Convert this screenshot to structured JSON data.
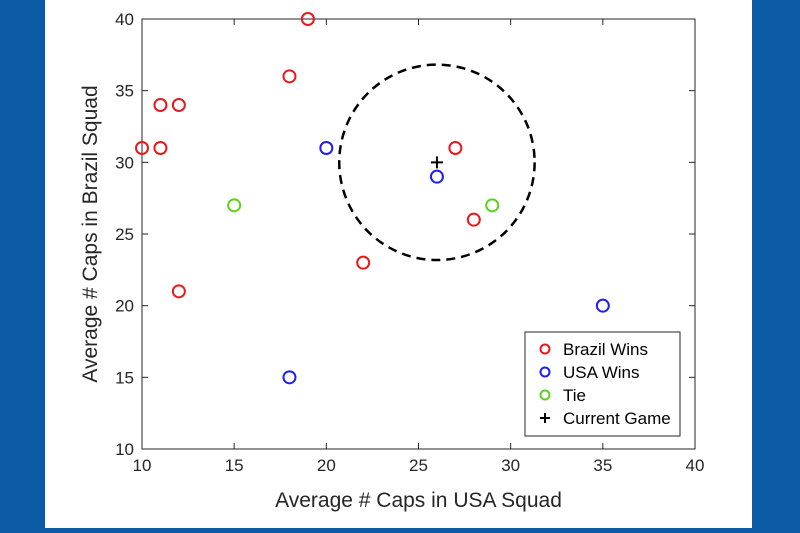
{
  "colors": {
    "background": "#0a5aa6",
    "brazil": "#e8191b",
    "usa": "#1f1ff0",
    "tie": "#5cd11f",
    "current": "#000000",
    "circle": "#000000"
  },
  "chart_data": {
    "type": "scatter",
    "xlabel": "Average # Caps in USA Squad",
    "ylabel": "Average # Caps in Brazil Squad",
    "xlim": [
      10,
      40
    ],
    "ylim": [
      10,
      40
    ],
    "xticks": [
      "10",
      "15",
      "20",
      "25",
      "30",
      "35",
      "40"
    ],
    "yticks": [
      "10",
      "15",
      "20",
      "25",
      "30",
      "35",
      "40"
    ],
    "grid": false,
    "legend_position": "bottom-right",
    "series": [
      {
        "name": "Brazil Wins",
        "marker": "circle",
        "color": "#e8191b",
        "points": [
          {
            "x": 10,
            "y": 31
          },
          {
            "x": 11,
            "y": 31
          },
          {
            "x": 11,
            "y": 34
          },
          {
            "x": 12,
            "y": 34
          },
          {
            "x": 12,
            "y": 21
          },
          {
            "x": 18,
            "y": 36
          },
          {
            "x": 19,
            "y": 40
          },
          {
            "x": 22,
            "y": 23
          },
          {
            "x": 27,
            "y": 31
          },
          {
            "x": 28,
            "y": 26
          }
        ]
      },
      {
        "name": "USA Wins",
        "marker": "circle",
        "color": "#1f1ff0",
        "points": [
          {
            "x": 20,
            "y": 31
          },
          {
            "x": 26,
            "y": 29
          },
          {
            "x": 18,
            "y": 15
          },
          {
            "x": 35,
            "y": 20
          }
        ]
      },
      {
        "name": "Tie",
        "marker": "circle",
        "color": "#5cd11f",
        "points": [
          {
            "x": 15,
            "y": 27
          },
          {
            "x": 29,
            "y": 27
          }
        ]
      },
      {
        "name": "Current Game",
        "marker": "plus",
        "color": "#000000",
        "points": [
          {
            "x": 26,
            "y": 30
          }
        ]
      }
    ],
    "annotations": [
      {
        "type": "dashed-circle",
        "center": {
          "x": 26,
          "y": 30
        },
        "radius": 5.3
      }
    ]
  }
}
